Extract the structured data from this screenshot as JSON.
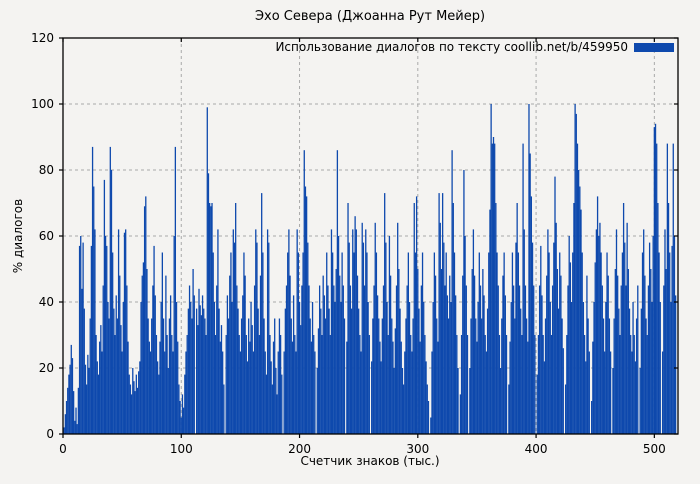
{
  "colors": {
    "bar": "#0e49ad",
    "grid": "#a9a9a9",
    "axis": "#000000",
    "background": "#f4f3f1"
  },
  "chart_data": {
    "type": "bar",
    "title": "Эхо Севера (Джоанна Рут Мейер)",
    "legend": "Использование диалогов по тексту  coollib.net/b/459950",
    "xlabel": "Счетчик знаков (тыс.)",
    "ylabel": "% диалогов",
    "xlim": [
      0,
      520
    ],
    "ylim": [
      0,
      120
    ],
    "xticks": [
      0,
      100,
      200,
      300,
      400,
      500
    ],
    "yticks": [
      0,
      20,
      40,
      60,
      80,
      100,
      120
    ],
    "grid": "dashed",
    "legend_position": "top-right-inside",
    "x_start": 1,
    "x_unit": "thousand characters",
    "y_unit": "percent",
    "values": [
      2,
      6,
      10,
      14,
      18,
      21,
      27,
      23,
      13,
      4,
      8,
      3,
      14,
      57,
      60,
      44,
      58,
      38,
      21,
      15,
      24,
      20,
      35,
      57,
      87,
      75,
      62,
      30,
      22,
      18,
      28,
      33,
      25,
      45,
      77,
      60,
      57,
      40,
      35,
      87,
      80,
      55,
      38,
      30,
      42,
      35,
      62,
      48,
      33,
      25,
      40,
      61,
      62,
      45,
      28,
      18,
      15,
      12,
      20,
      16,
      13,
      18,
      14,
      19,
      22,
      40,
      48,
      52,
      69,
      72,
      50,
      35,
      28,
      25,
      35,
      45,
      57,
      42,
      30,
      22,
      18,
      28,
      40,
      55,
      35,
      25,
      48,
      30,
      20,
      35,
      42,
      30,
      25,
      60,
      87,
      40,
      28,
      15,
      10,
      5,
      12,
      8,
      18,
      25,
      30,
      38,
      45,
      40,
      35,
      50,
      42,
      0,
      38,
      33,
      44,
      39,
      36,
      42,
      38,
      35,
      30,
      99,
      79,
      70,
      69,
      70,
      55,
      40,
      30,
      45,
      62,
      38,
      28,
      33,
      25,
      15,
      0,
      30,
      42,
      35,
      48,
      55,
      40,
      62,
      58,
      70,
      45,
      38,
      30,
      25,
      35,
      42,
      55,
      48,
      30,
      22,
      35,
      28,
      40,
      33,
      25,
      45,
      62,
      58,
      38,
      30,
      48,
      73,
      55,
      35,
      25,
      18,
      62,
      58,
      30,
      22,
      15,
      28,
      35,
      20,
      12,
      25,
      35,
      30,
      18,
      0,
      25,
      38,
      45,
      55,
      62,
      48,
      35,
      28,
      42,
      30,
      25,
      62,
      55,
      40,
      33,
      45,
      55,
      86,
      75,
      72,
      58,
      45,
      35,
      28,
      40,
      30,
      25,
      0,
      20,
      32,
      45,
      38,
      30,
      48,
      42,
      35,
      55,
      45,
      38,
      30,
      62,
      55,
      45,
      40,
      50,
      86,
      60,
      48,
      40,
      55,
      45,
      35,
      0,
      28,
      70,
      58,
      45,
      38,
      62,
      55,
      66,
      62,
      48,
      38,
      30,
      25,
      64,
      58,
      45,
      62,
      55,
      40,
      30,
      0,
      22,
      35,
      45,
      64,
      55,
      42,
      35,
      28,
      22,
      35,
      45,
      73,
      58,
      40,
      30,
      60,
      48,
      35,
      28,
      20,
      32,
      45,
      64,
      50,
      38,
      28,
      20,
      15,
      25,
      35,
      45,
      55,
      40,
      30,
      25,
      35,
      70,
      55,
      72,
      50,
      38,
      28,
      45,
      55,
      40,
      30,
      22,
      15,
      10,
      0,
      5,
      25,
      40,
      55,
      48,
      35,
      28,
      73,
      64,
      50,
      73,
      58,
      45,
      55,
      42,
      35,
      48,
      40,
      86,
      70,
      55,
      42,
      30,
      20,
      0,
      12,
      30,
      48,
      80,
      60,
      45,
      30,
      0,
      20,
      35,
      50,
      62,
      48,
      35,
      28,
      40,
      55,
      45,
      35,
      50,
      42,
      30,
      25,
      38,
      55,
      68,
      100,
      88,
      90,
      88,
      70,
      55,
      45,
      30,
      20,
      35,
      48,
      55,
      42,
      30,
      0,
      15,
      28,
      40,
      55,
      45,
      35,
      58,
      70,
      55,
      45,
      38,
      30,
      88,
      62,
      45,
      35,
      28,
      100,
      85,
      72,
      58,
      45,
      30,
      0,
      18,
      30,
      45,
      57,
      42,
      30,
      22,
      35,
      48,
      62,
      55,
      40,
      30,
      45,
      58,
      78,
      64,
      50,
      38,
      55,
      48,
      35,
      26,
      0,
      15,
      30,
      45,
      60,
      52,
      40,
      55,
      70,
      100,
      97,
      88,
      80,
      75,
      68,
      55,
      40,
      30,
      22,
      48,
      35,
      25,
      0,
      10,
      28,
      40,
      52,
      62,
      72,
      60,
      64,
      55,
      45,
      35,
      25,
      40,
      55,
      48,
      35,
      25,
      0,
      20,
      35,
      50,
      62,
      48,
      38,
      30,
      45,
      55,
      70,
      58,
      45,
      64,
      50,
      38,
      30,
      25,
      40,
      30,
      22,
      35,
      45,
      0,
      20,
      38,
      55,
      62,
      48,
      35,
      30,
      45,
      58,
      50,
      40,
      60,
      93,
      94,
      88,
      70,
      55,
      40,
      0,
      25,
      45,
      62,
      50,
      88,
      70,
      55,
      40,
      57,
      88,
      60,
      42
    ]
  }
}
